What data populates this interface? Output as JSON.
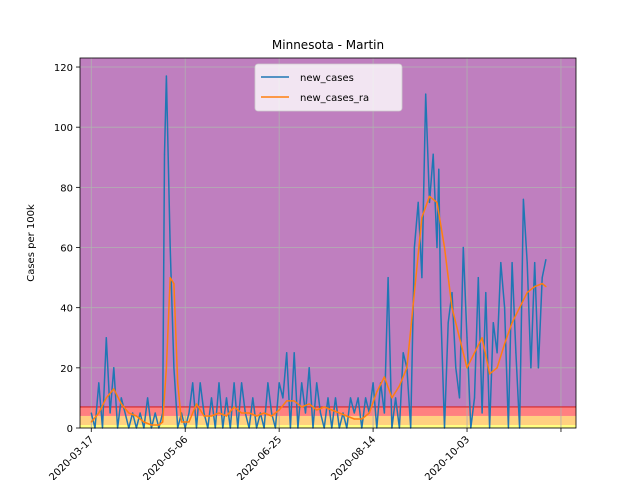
{
  "chart_data": {
    "type": "line",
    "title": "Minnesota - Martin",
    "xlabel": "",
    "ylabel": "Cases per 100k",
    "ylim": [
      0,
      123
    ],
    "xlim": [
      "2020-03-11",
      "2020-11-30"
    ],
    "grid": true,
    "legend_position": "top-center",
    "x_tick_labels": [
      "2020-03-17",
      "2020-05-06",
      "2020-06-25",
      "2020-08-14",
      "2020-10-03"
    ],
    "x_tick_dates": [
      "2020-03-17",
      "2020-05-06",
      "2020-06-25",
      "2020-08-14",
      "2020-10-03",
      "2020-11-22"
    ],
    "y_ticks": [
      0,
      20,
      40,
      60,
      80,
      100,
      120
    ],
    "background_bands": [
      {
        "from": 0,
        "to": 1,
        "color": "#ffff80"
      },
      {
        "from": 1,
        "to": 4,
        "color": "#ffd080"
      },
      {
        "from": 4,
        "to": 7,
        "color": "#ff8080"
      },
      {
        "from": 7,
        "to": 123,
        "color": "#bf7fbf"
      }
    ],
    "threshold_line": {
      "y": 7,
      "color": "#d62728"
    },
    "series": [
      {
        "name": "new_cases",
        "color": "#1f77b4",
        "x": [
          "2020-03-17",
          "2020-03-19",
          "2020-03-21",
          "2020-03-23",
          "2020-03-25",
          "2020-03-27",
          "2020-03-29",
          "2020-03-31",
          "2020-04-02",
          "2020-04-04",
          "2020-04-06",
          "2020-04-08",
          "2020-04-10",
          "2020-04-12",
          "2020-04-14",
          "2020-04-16",
          "2020-04-18",
          "2020-04-20",
          "2020-04-22",
          "2020-04-24",
          "2020-04-25",
          "2020-04-26",
          "2020-04-28",
          "2020-04-30",
          "2020-05-02",
          "2020-05-04",
          "2020-05-06",
          "2020-05-08",
          "2020-05-10",
          "2020-05-12",
          "2020-05-14",
          "2020-05-16",
          "2020-05-18",
          "2020-05-20",
          "2020-05-22",
          "2020-05-24",
          "2020-05-26",
          "2020-05-28",
          "2020-05-30",
          "2020-06-01",
          "2020-06-03",
          "2020-06-05",
          "2020-06-07",
          "2020-06-09",
          "2020-06-11",
          "2020-06-13",
          "2020-06-15",
          "2020-06-17",
          "2020-06-19",
          "2020-06-21",
          "2020-06-23",
          "2020-06-25",
          "2020-06-27",
          "2020-06-29",
          "2020-07-01",
          "2020-07-03",
          "2020-07-05",
          "2020-07-07",
          "2020-07-09",
          "2020-07-11",
          "2020-07-13",
          "2020-07-15",
          "2020-07-17",
          "2020-07-19",
          "2020-07-21",
          "2020-07-23",
          "2020-07-25",
          "2020-07-27",
          "2020-07-29",
          "2020-07-31",
          "2020-08-02",
          "2020-08-04",
          "2020-08-06",
          "2020-08-08",
          "2020-08-10",
          "2020-08-12",
          "2020-08-14",
          "2020-08-16",
          "2020-08-18",
          "2020-08-20",
          "2020-08-22",
          "2020-08-24",
          "2020-08-26",
          "2020-08-28",
          "2020-08-30",
          "2020-09-01",
          "2020-09-03",
          "2020-09-05",
          "2020-09-07",
          "2020-09-09",
          "2020-09-11",
          "2020-09-13",
          "2020-09-15",
          "2020-09-17",
          "2020-09-18",
          "2020-09-19",
          "2020-09-21",
          "2020-09-23",
          "2020-09-25",
          "2020-09-27",
          "2020-09-29",
          "2020-10-01",
          "2020-10-03",
          "2020-10-05",
          "2020-10-07",
          "2020-10-09",
          "2020-10-11",
          "2020-10-13",
          "2020-10-15",
          "2020-10-17",
          "2020-10-19",
          "2020-10-21",
          "2020-10-23",
          "2020-10-25",
          "2020-10-27",
          "2020-10-29",
          "2020-10-31",
          "2020-11-02",
          "2020-11-04",
          "2020-11-06",
          "2020-11-08",
          "2020-11-10",
          "2020-11-12",
          "2020-11-14"
        ],
        "values": [
          5,
          0,
          15,
          0,
          30,
          5,
          20,
          0,
          10,
          5,
          0,
          5,
          0,
          5,
          0,
          10,
          0,
          5,
          0,
          5,
          91,
          117,
          60,
          20,
          0,
          5,
          0,
          5,
          15,
          0,
          15,
          5,
          0,
          10,
          0,
          15,
          0,
          10,
          0,
          15,
          0,
          15,
          5,
          0,
          10,
          0,
          5,
          0,
          15,
          5,
          0,
          15,
          10,
          25,
          0,
          25,
          0,
          15,
          5,
          20,
          0,
          15,
          5,
          0,
          10,
          0,
          10,
          0,
          5,
          0,
          10,
          5,
          10,
          0,
          10,
          5,
          15,
          0,
          15,
          5,
          50,
          0,
          10,
          0,
          25,
          20,
          0,
          60,
          75,
          50,
          111,
          75,
          91,
          60,
          86,
          40,
          0,
          35,
          45,
          20,
          10,
          60,
          30,
          0,
          10,
          50,
          5,
          45,
          0,
          35,
          25,
          55,
          40,
          0,
          55,
          25,
          0,
          76,
          55,
          20,
          55,
          20,
          50,
          56
        ],
        "x_extra": []
      },
      {
        "name": "new_cases_ra",
        "color": "#ff7f0e",
        "x": [
          "2020-03-17",
          "2020-03-21",
          "2020-03-25",
          "2020-03-29",
          "2020-04-02",
          "2020-04-06",
          "2020-04-10",
          "2020-04-14",
          "2020-04-18",
          "2020-04-22",
          "2020-04-24",
          "2020-04-26",
          "2020-04-28",
          "2020-04-30",
          "2020-05-02",
          "2020-05-04",
          "2020-05-08",
          "2020-05-12",
          "2020-05-16",
          "2020-05-20",
          "2020-05-24",
          "2020-05-28",
          "2020-06-01",
          "2020-06-05",
          "2020-06-09",
          "2020-06-13",
          "2020-06-17",
          "2020-06-21",
          "2020-06-25",
          "2020-06-29",
          "2020-07-03",
          "2020-07-07",
          "2020-07-11",
          "2020-07-15",
          "2020-07-19",
          "2020-07-23",
          "2020-07-27",
          "2020-07-31",
          "2020-08-04",
          "2020-08-08",
          "2020-08-12",
          "2020-08-16",
          "2020-08-20",
          "2020-08-24",
          "2020-08-28",
          "2020-09-01",
          "2020-09-05",
          "2020-09-09",
          "2020-09-13",
          "2020-09-17",
          "2020-09-21",
          "2020-09-25",
          "2020-09-29",
          "2020-10-03",
          "2020-10-07",
          "2020-10-11",
          "2020-10-15",
          "2020-10-19",
          "2020-10-23",
          "2020-10-27",
          "2020-10-31",
          "2020-11-04",
          "2020-11-08",
          "2020-11-12",
          "2020-11-14"
        ],
        "values": [
          2,
          5,
          10,
          13,
          8,
          5,
          4,
          2,
          1,
          1,
          2,
          20,
          50,
          48,
          15,
          2,
          2,
          8,
          4,
          4,
          5,
          4,
          7,
          5,
          5,
          4,
          5,
          4,
          6,
          9,
          9,
          7,
          8,
          6,
          7,
          6,
          5,
          4,
          3,
          3,
          5,
          12,
          17,
          10,
          14,
          20,
          45,
          70,
          77,
          75,
          60,
          40,
          30,
          20,
          25,
          30,
          18,
          20,
          28,
          35,
          40,
          45,
          47,
          48,
          47
        ]
      }
    ]
  }
}
